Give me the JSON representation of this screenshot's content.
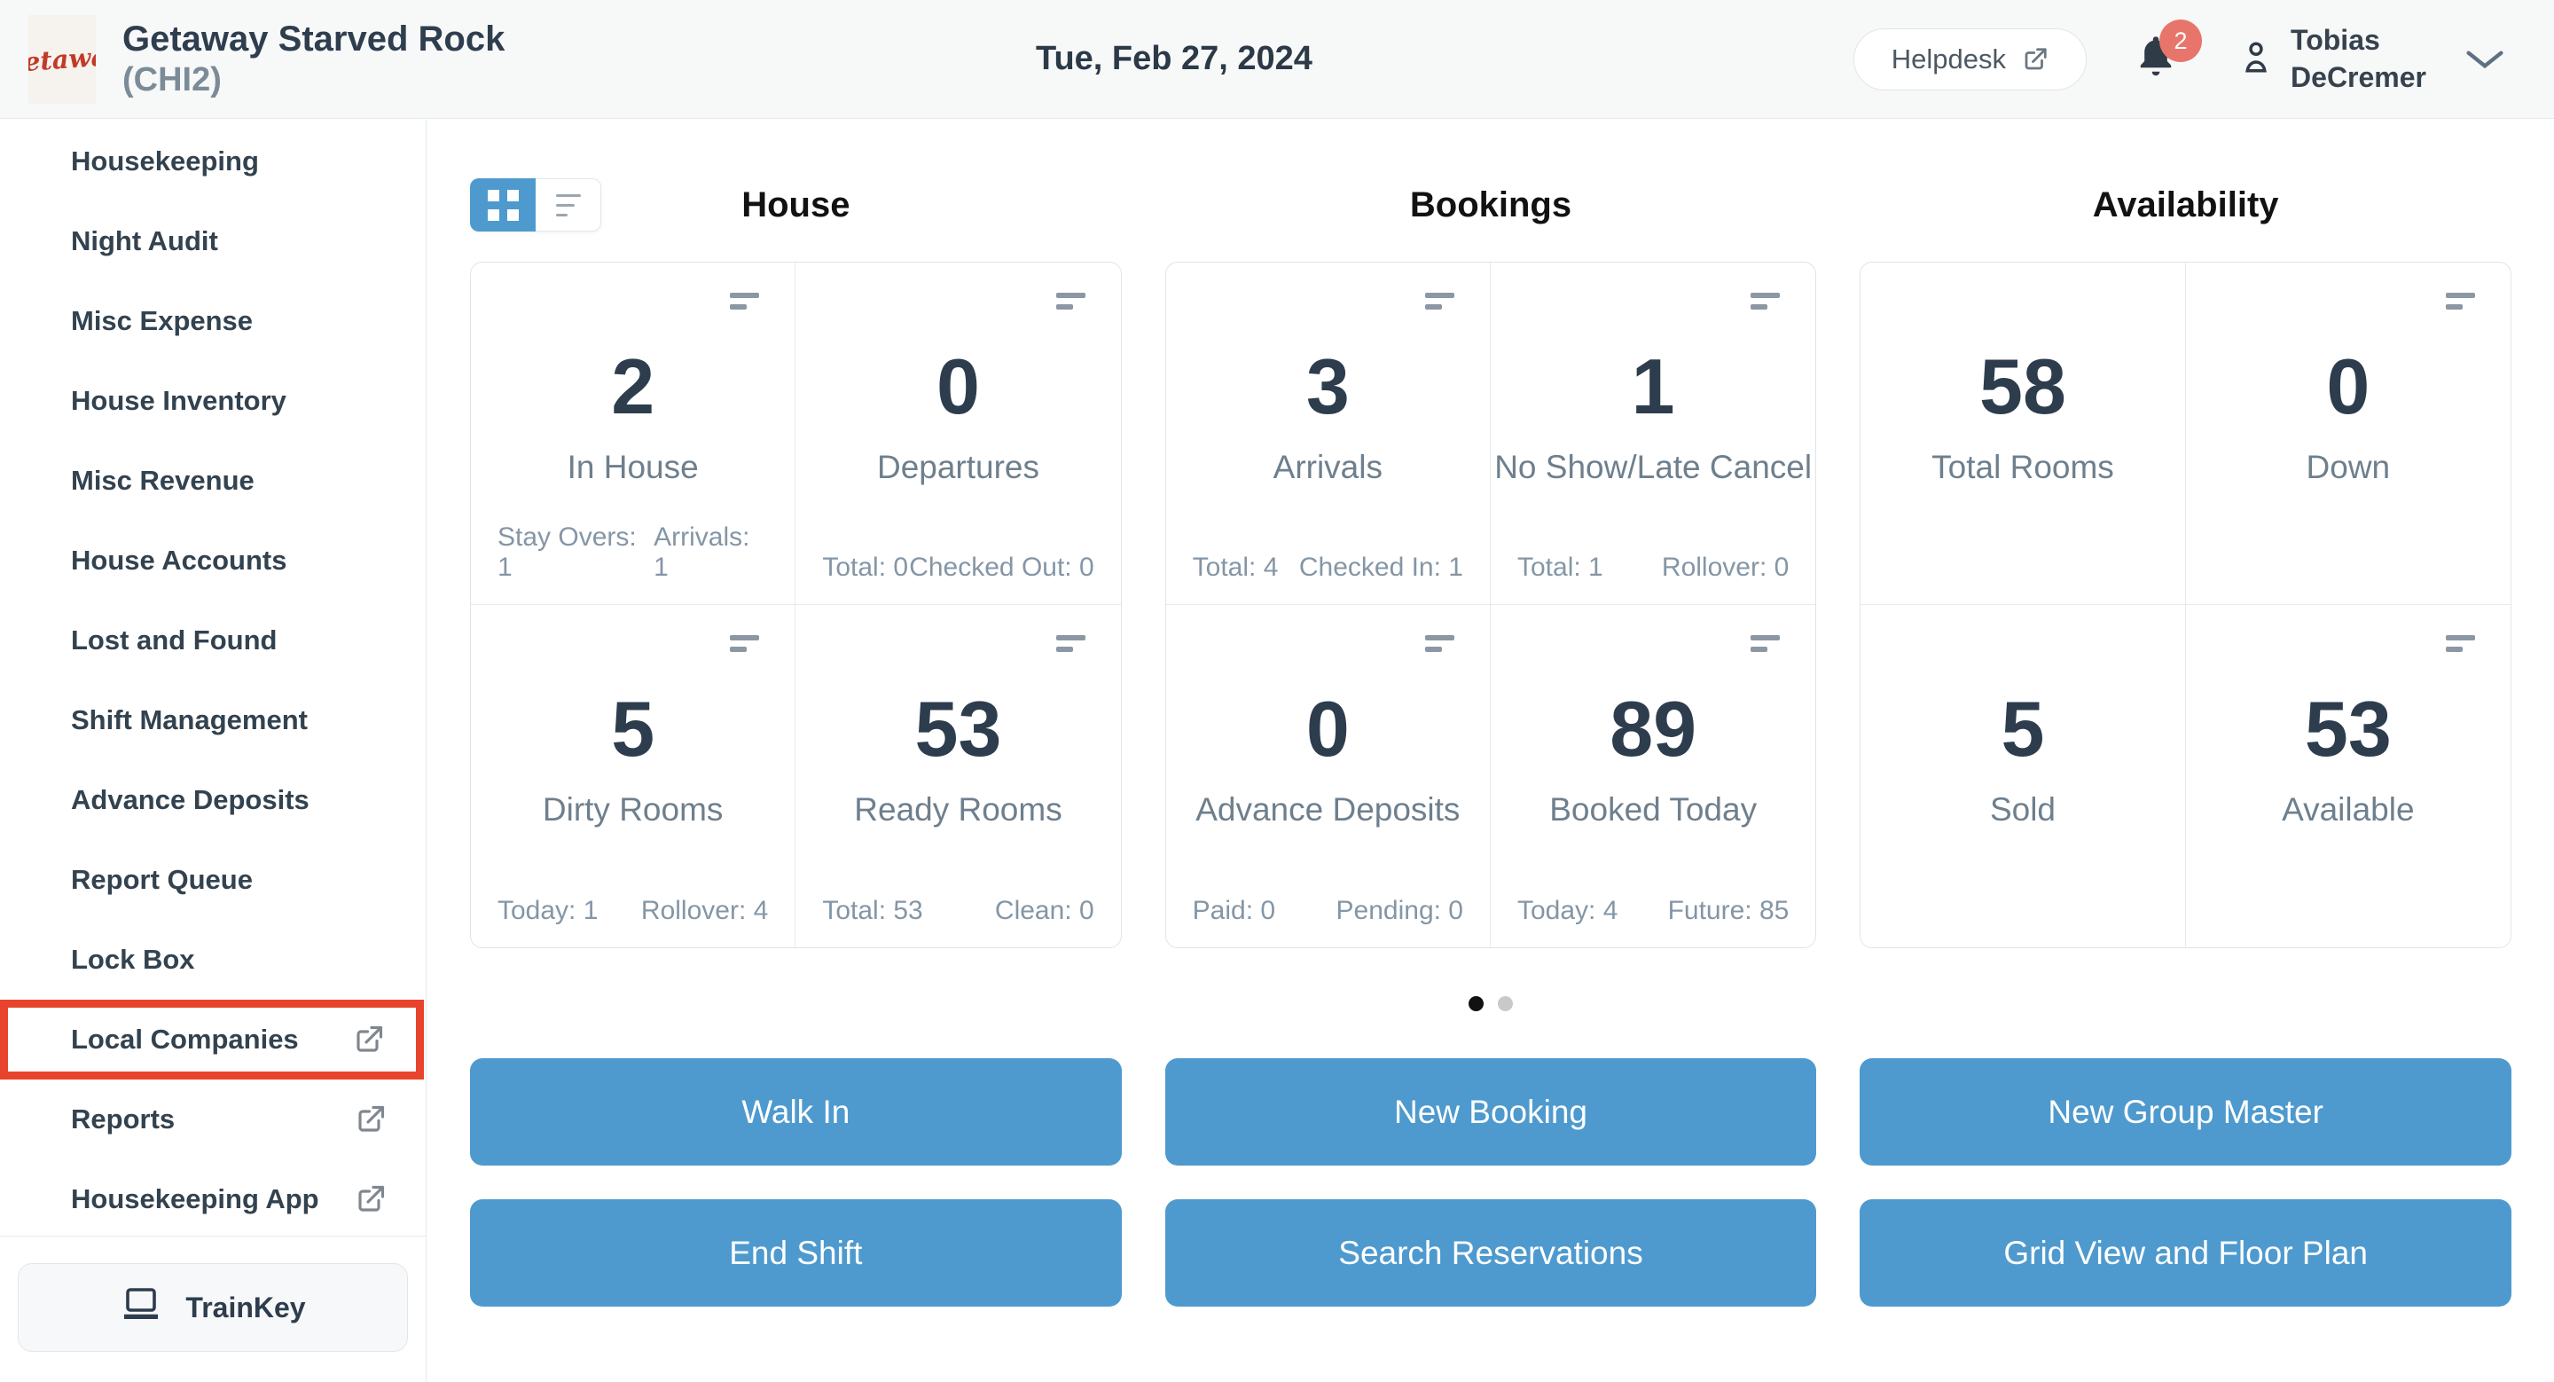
{
  "colors": {
    "accent": "#4e9ace",
    "highlight_red": "#e8432c",
    "badge": "#e8756b"
  },
  "icons": {
    "logo": "getaway-script-logo",
    "helpdesk": "external-link-icon",
    "notifications": "bell-icon",
    "user": "person-icon",
    "user_menu": "chevron-down-icon",
    "sidebar_external": "external-link-icon",
    "trainkey": "laptop-icon",
    "toggle_left": "grid-view-icon",
    "toggle_right": "list-view-icon",
    "card_corner": "menu-bars-icon"
  },
  "header": {
    "logo_text": "Getaway",
    "property_name": "Getaway Starved Rock",
    "property_code": "(CHI2)",
    "date": "Tue, Feb 27, 2024",
    "helpdesk_label": "Helpdesk",
    "notification_count": "2",
    "user_first_name": "Tobias",
    "user_last_name": "DeCremer"
  },
  "sidebar": {
    "items": [
      {
        "label": "Housekeeping",
        "external": false,
        "highlighted": false
      },
      {
        "label": "Night Audit",
        "external": false,
        "highlighted": false
      },
      {
        "label": "Misc Expense",
        "external": false,
        "highlighted": false
      },
      {
        "label": "House Inventory",
        "external": false,
        "highlighted": false
      },
      {
        "label": "Misc Revenue",
        "external": false,
        "highlighted": false
      },
      {
        "label": "House Accounts",
        "external": false,
        "highlighted": false
      },
      {
        "label": "Lost and Found",
        "external": false,
        "highlighted": false
      },
      {
        "label": "Shift Management",
        "external": false,
        "highlighted": false
      },
      {
        "label": "Advance Deposits",
        "external": false,
        "highlighted": false
      },
      {
        "label": "Report Queue",
        "external": false,
        "highlighted": false
      },
      {
        "label": "Lock Box",
        "external": false,
        "highlighted": false
      },
      {
        "label": "Local Companies",
        "external": true,
        "highlighted": true
      },
      {
        "label": "Reports",
        "external": true,
        "highlighted": false
      },
      {
        "label": "Housekeeping App",
        "external": true,
        "highlighted": false
      }
    ],
    "trainkey_label": "TrainKey"
  },
  "main": {
    "sections": [
      {
        "title": "House",
        "cards": [
          {
            "value": "2",
            "label": "In House",
            "menu": true,
            "stats": [
              "Stay Overs: 1",
              "Arrivals: 1"
            ]
          },
          {
            "value": "0",
            "label": "Departures",
            "menu": true,
            "stats": [
              "Total: 0",
              "Checked Out: 0"
            ]
          },
          {
            "value": "5",
            "label": "Dirty Rooms",
            "menu": true,
            "stats": [
              "Today: 1",
              "Rollover: 4"
            ]
          },
          {
            "value": "53",
            "label": "Ready Rooms",
            "menu": true,
            "stats": [
              "Total: 53",
              "Clean: 0"
            ]
          }
        ]
      },
      {
        "title": "Bookings",
        "cards": [
          {
            "value": "3",
            "label": "Arrivals",
            "menu": true,
            "stats": [
              "Total: 4",
              "Checked In: 1"
            ]
          },
          {
            "value": "1",
            "label": "No Show/Late Cancel",
            "menu": true,
            "stats": [
              "Total: 1",
              "Rollover: 0"
            ]
          },
          {
            "value": "0",
            "label": "Advance Deposits",
            "menu": true,
            "stats": [
              "Paid: 0",
              "Pending: 0"
            ]
          },
          {
            "value": "89",
            "label": "Booked Today",
            "menu": true,
            "stats": [
              "Today: 4",
              "Future: 85"
            ]
          }
        ]
      },
      {
        "title": "Availability",
        "cards": [
          {
            "value": "58",
            "label": "Total Rooms",
            "menu": false,
            "stats": []
          },
          {
            "value": "0",
            "label": "Down",
            "menu": true,
            "stats": []
          },
          {
            "value": "5",
            "label": "Sold",
            "menu": false,
            "stats": []
          },
          {
            "value": "53",
            "label": "Available",
            "menu": true,
            "stats": []
          }
        ]
      }
    ],
    "pagination": {
      "total_dots": 2,
      "active_dot": 0
    },
    "actions": [
      "Walk In",
      "New Booking",
      "New Group Master",
      "End Shift",
      "Search Reservations",
      "Grid View and Floor Plan"
    ]
  }
}
